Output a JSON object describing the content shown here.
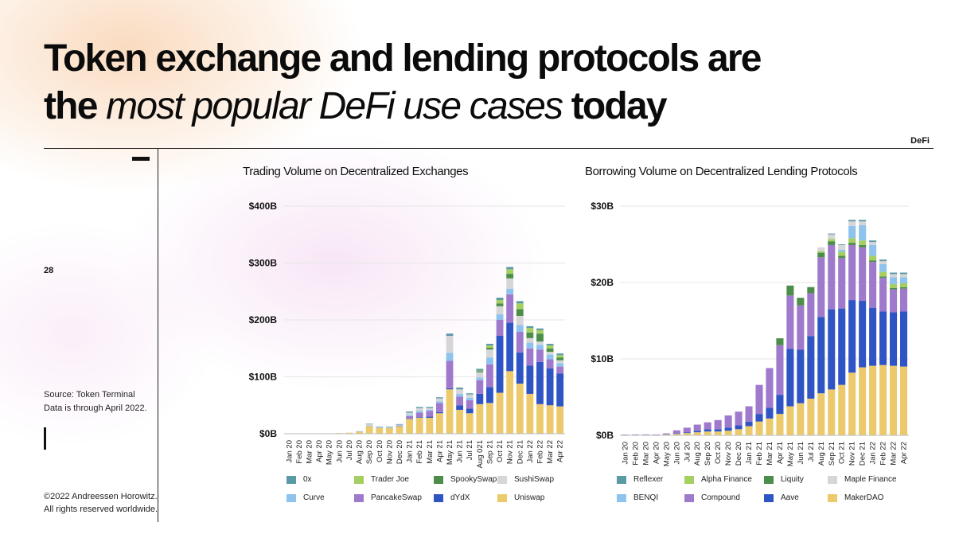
{
  "slide": {
    "title_line1": "Token exchange and lending protocols are",
    "title_line2_bold1": "the",
    "title_line2_italic": "most popular DeFi use cases",
    "title_line2_bold2": "today",
    "tag": "DeFi",
    "page_number": "28",
    "source_line1": "Source: Token Terminal",
    "source_line2": "Data is through April 2022.",
    "copyright_line1": "©2022 Andreessen Horowitz.",
    "copyright_line2": "All rights reserved worldwide."
  },
  "chart_data": [
    {
      "type": "bar",
      "stacked": true,
      "title": "Trading Volume on Decentralized Exchanges",
      "ylim": [
        0,
        400
      ],
      "yticks": [
        0,
        100,
        200,
        300,
        400
      ],
      "ytick_labels": [
        "$0B",
        "$100B",
        "$200B",
        "$300B",
        "$400B"
      ],
      "grid": true,
      "legend_position": "bottom",
      "categories": [
        "Jan 20",
        "Feb 20",
        "Mar 20",
        "Apr 20",
        "May 20",
        "Jun 20",
        "Jul 20",
        "Aug 20",
        "Sep 20",
        "Oct 20",
        "Nov 20",
        "Dec 20",
        "Jan 21",
        "Feb 21",
        "Mar 21",
        "Apr 21",
        "May 21",
        "Jun 21",
        "Jul 21",
        "Aug 021",
        "Sep 21",
        "Oct 21",
        "Nov 21",
        "Dec 21",
        "Jan 22",
        "Feb 22",
        "Mar 22",
        "Apr 22"
      ],
      "legend_order": [
        "0x",
        "Trader Joe",
        "SpookySwap",
        "SushiSwap",
        "Curve",
        "PancakeSwap",
        "dYdX",
        "Uniswap"
      ],
      "series": [
        {
          "name": "Uniswap",
          "color": "#ecca6c",
          "values": [
            0.3,
            0.4,
            0.5,
            0.6,
            0.8,
            1.2,
            1.8,
            4,
            13,
            10,
            10,
            13,
            26,
            28,
            28,
            36,
            78,
            42,
            36,
            52,
            54,
            72,
            110,
            88,
            70,
            52,
            50,
            48
          ]
        },
        {
          "name": "dYdX",
          "color": "#2f55c5",
          "values": [
            0,
            0,
            0,
            0,
            0,
            0,
            0,
            0,
            0,
            0,
            0,
            0,
            1,
            1,
            2,
            2,
            2,
            8,
            8,
            18,
            28,
            100,
            85,
            55,
            50,
            74,
            65,
            58
          ]
        },
        {
          "name": "PancakeSwap",
          "color": "#9f79cc",
          "values": [
            0,
            0,
            0,
            0,
            0,
            0,
            0,
            0,
            0,
            0,
            0,
            1,
            4,
            8,
            10,
            16,
            48,
            15,
            15,
            24,
            40,
            28,
            50,
            36,
            30,
            22,
            16,
            12
          ]
        },
        {
          "name": "Curve",
          "color": "#8ec3ee",
          "values": [
            0,
            0,
            0,
            0,
            0,
            0,
            0,
            0.3,
            1,
            1,
            1,
            1,
            2,
            3,
            2,
            3,
            14,
            5,
            4,
            5,
            12,
            10,
            10,
            12,
            10,
            8,
            8,
            6
          ]
        },
        {
          "name": "SushiSwap",
          "color": "#d6d6d8",
          "values": [
            0,
            0,
            0,
            0,
            0,
            0,
            0,
            0.5,
            3,
            1,
            1,
            1,
            4,
            5,
            3,
            5,
            30,
            8,
            6,
            9,
            14,
            14,
            18,
            16,
            8,
            6,
            5,
            5
          ]
        },
        {
          "name": "SpookySwap",
          "color": "#4d8d4a",
          "values": [
            0,
            0,
            0,
            0,
            0,
            0,
            0,
            0,
            0,
            0,
            0,
            0,
            0,
            0,
            0,
            0,
            0,
            0,
            0,
            2,
            3,
            5,
            8,
            12,
            10,
            14,
            6,
            5
          ]
        },
        {
          "name": "Trader Joe",
          "color": "#a6cf62",
          "values": [
            0,
            0,
            0,
            0,
            0,
            0,
            0,
            0,
            0,
            0,
            0,
            0,
            0,
            0,
            0,
            0,
            0,
            0,
            0,
            1,
            4,
            6,
            8,
            10,
            8,
            6,
            5,
            4
          ]
        },
        {
          "name": "0x",
          "color": "#5a99a6",
          "values": [
            0,
            0,
            0,
            0,
            0,
            0,
            0,
            0,
            0.5,
            0.5,
            0.5,
            1,
            2,
            2,
            2,
            2,
            4,
            3,
            2,
            3,
            3,
            4,
            4,
            4,
            3,
            3,
            3,
            3
          ]
        }
      ]
    },
    {
      "type": "bar",
      "stacked": true,
      "title": "Borrowing Volume on Decentralized Lending Protocols",
      "ylim": [
        0,
        30
      ],
      "yticks": [
        0,
        10,
        20,
        30
      ],
      "ytick_labels": [
        "$0B",
        "$10B",
        "$20B",
        "$30B"
      ],
      "grid": true,
      "legend_position": "bottom",
      "categories": [
        "Jan 20",
        "Feb 20",
        "Mar 20",
        "Apr 20",
        "May 20",
        "Jun 20",
        "Jul 20",
        "Aug 20",
        "Sep 20",
        "Oct 20",
        "Nov 20",
        "Dec 20",
        "Jan 21",
        "Feb 21",
        "Mar 21",
        "Apr 21",
        "May 21",
        "Jun 21",
        "Jul 21",
        "Aug 21",
        "Sep 21",
        "Oct 21",
        "Nov 21",
        "Dec 21",
        "Jan 22",
        "Feb 22",
        "Mar 22",
        "Apr 22"
      ],
      "legend_order": [
        "Reflexer",
        "Alpha Finance",
        "Liquity",
        "Maple Finance",
        "BENQI",
        "Compound",
        "Aave",
        "MakerDAO"
      ],
      "series": [
        {
          "name": "MakerDAO",
          "color": "#ecca6c",
          "values": [
            0.05,
            0.06,
            0.07,
            0.06,
            0.1,
            0.2,
            0.3,
            0.4,
            0.5,
            0.5,
            0.6,
            0.8,
            1.2,
            1.8,
            2.2,
            2.8,
            3.8,
            4.2,
            4.8,
            5.5,
            6.0,
            6.6,
            8.2,
            8.9,
            9.1,
            9.2,
            9.1,
            9.0
          ]
        },
        {
          "name": "Aave",
          "color": "#2f55c5",
          "values": [
            0,
            0,
            0,
            0,
            0,
            0.05,
            0.1,
            0.2,
            0.3,
            0.3,
            0.4,
            0.5,
            0.6,
            1.0,
            1.4,
            2.5,
            7.5,
            7.0,
            8.2,
            10.0,
            10.5,
            10.0,
            9.5,
            8.7,
            7.6,
            7.0,
            7.0,
            7.2
          ]
        },
        {
          "name": "Compound",
          "color": "#9f79cc",
          "values": [
            0.05,
            0.05,
            0.05,
            0.05,
            0.15,
            0.4,
            0.6,
            0.8,
            0.9,
            1.2,
            1.6,
            1.8,
            2.0,
            3.8,
            5.2,
            6.5,
            7.0,
            5.8,
            5.6,
            7.8,
            8.4,
            6.6,
            7.2,
            7.0,
            6.0,
            4.4,
            3.0,
            3.0
          ]
        },
        {
          "name": "Liquity",
          "color": "#4d8d4a",
          "values": [
            0,
            0,
            0,
            0,
            0,
            0,
            0,
            0,
            0,
            0,
            0,
            0,
            0,
            0,
            0,
            0.9,
            1.3,
            1.0,
            0.8,
            0.6,
            0.5,
            0.3,
            0.3,
            0.3,
            0.2,
            0.2,
            0.2,
            0.2
          ]
        },
        {
          "name": "Alpha Finance",
          "color": "#a6cf62",
          "values": [
            0,
            0,
            0,
            0,
            0,
            0,
            0,
            0,
            0,
            0,
            0,
            0,
            0,
            0,
            0,
            0,
            0,
            0,
            0,
            0.2,
            0.3,
            0.5,
            0.6,
            0.6,
            0.6,
            0.6,
            0.5,
            0.5
          ]
        },
        {
          "name": "BENQI",
          "color": "#8ec3ee",
          "values": [
            0,
            0,
            0,
            0,
            0,
            0,
            0,
            0,
            0,
            0,
            0,
            0,
            0,
            0,
            0,
            0,
            0,
            0,
            0,
            0,
            0,
            0.3,
            1.6,
            2.0,
            1.4,
            1.0,
            0.9,
            0.8
          ]
        },
        {
          "name": "Maple Finance",
          "color": "#d6d6d8",
          "values": [
            0,
            0,
            0,
            0,
            0,
            0,
            0,
            0,
            0,
            0,
            0,
            0,
            0,
            0,
            0,
            0,
            0,
            0,
            0,
            0.5,
            0.6,
            0.6,
            0.6,
            0.5,
            0.4,
            0.4,
            0.4,
            0.4
          ]
        },
        {
          "name": "Reflexer",
          "color": "#5a99a6",
          "values": [
            0,
            0,
            0,
            0,
            0,
            0,
            0,
            0,
            0,
            0,
            0,
            0,
            0,
            0,
            0,
            0,
            0,
            0,
            0,
            0,
            0.1,
            0.1,
            0.2,
            0.2,
            0.2,
            0.2,
            0.2,
            0.2
          ]
        }
      ]
    }
  ]
}
